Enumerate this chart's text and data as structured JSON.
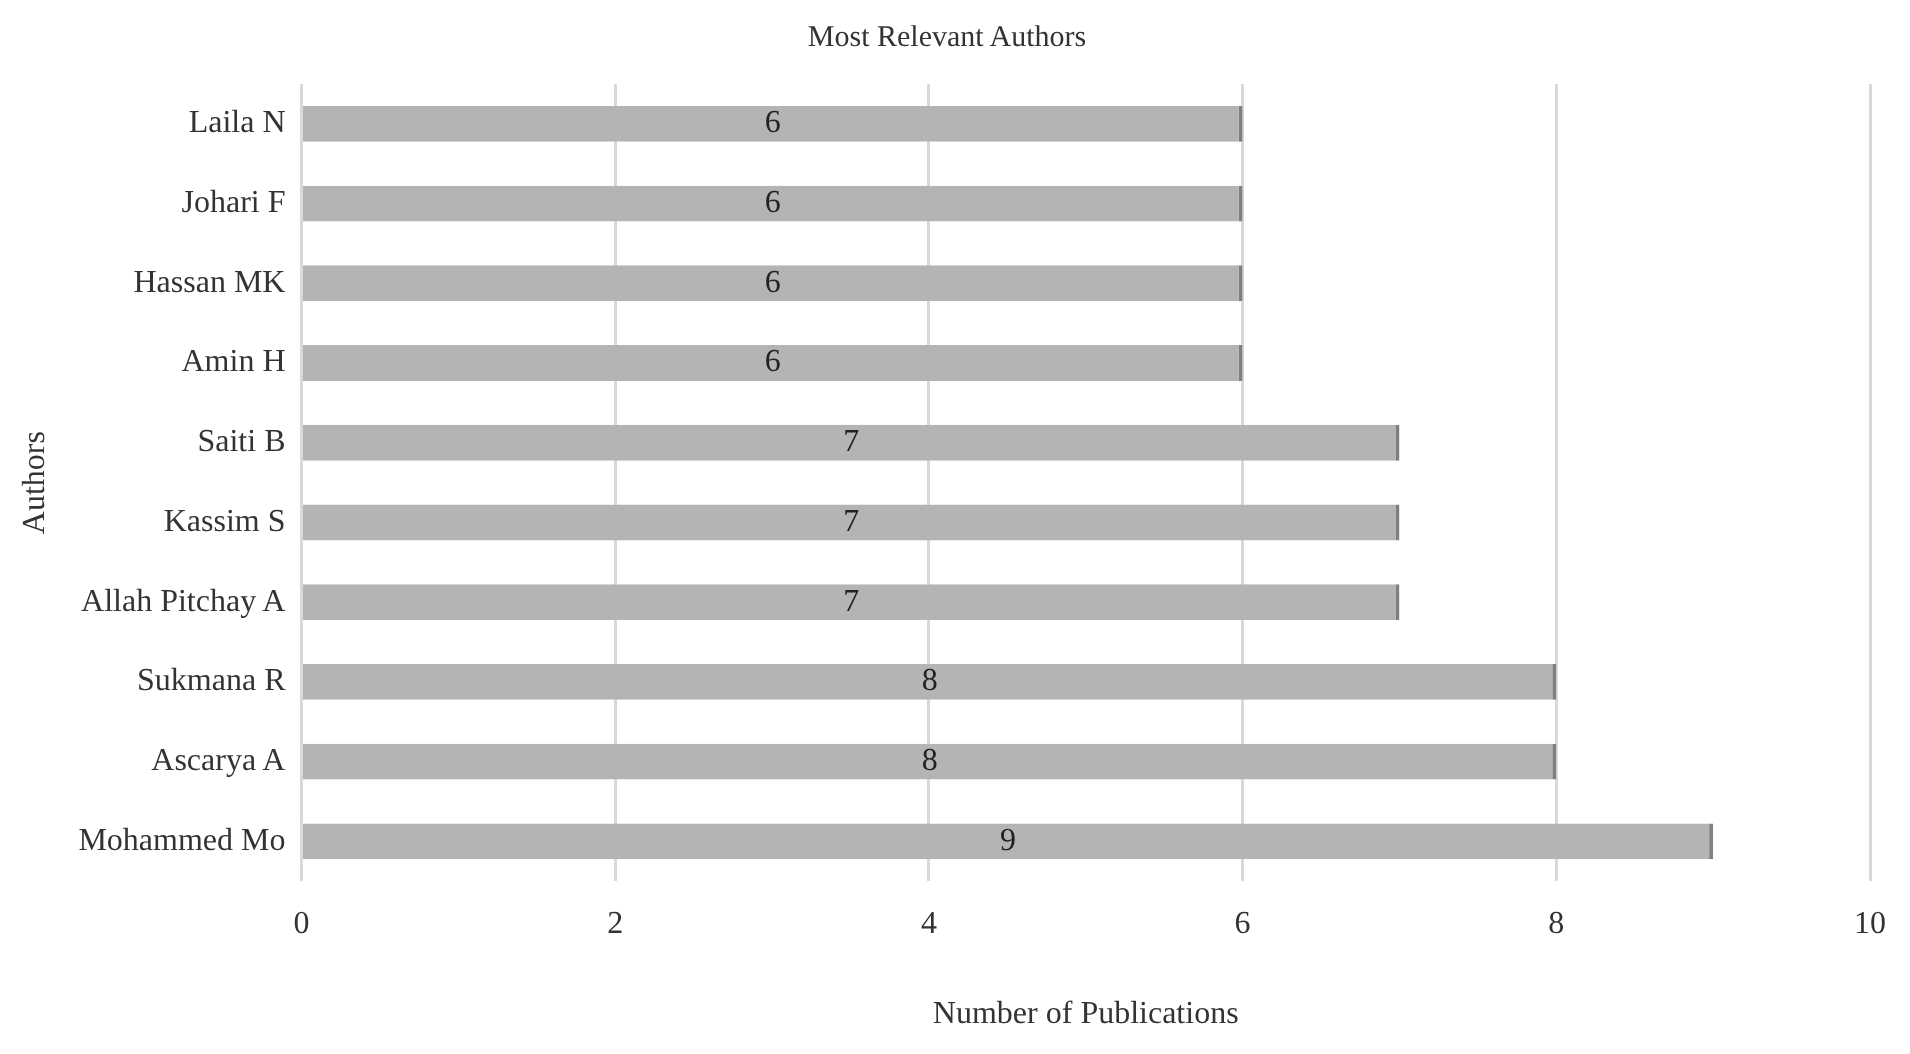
{
  "chart_data": {
    "type": "bar",
    "title": "Most Relevant Authors",
    "xlabel": "Number of Publications",
    "ylabel": "Authors",
    "orientation": "horizontal",
    "categories": [
      "Laila N",
      "Johari F",
      "Hassan MK",
      "Amin H",
      "Saiti B",
      "Kassim S",
      "Allah Pitchay A",
      "Sukmana R",
      "Ascarya A",
      "Mohammed Mo"
    ],
    "values": [
      6,
      6,
      6,
      6,
      7,
      7,
      7,
      8,
      8,
      9
    ],
    "color": "#b4b4b6",
    "xlim": [
      0,
      10
    ],
    "xticks": [
      0,
      2,
      4,
      6,
      8,
      10
    ],
    "grid": "x",
    "data_labels": true,
    "legend": false
  }
}
